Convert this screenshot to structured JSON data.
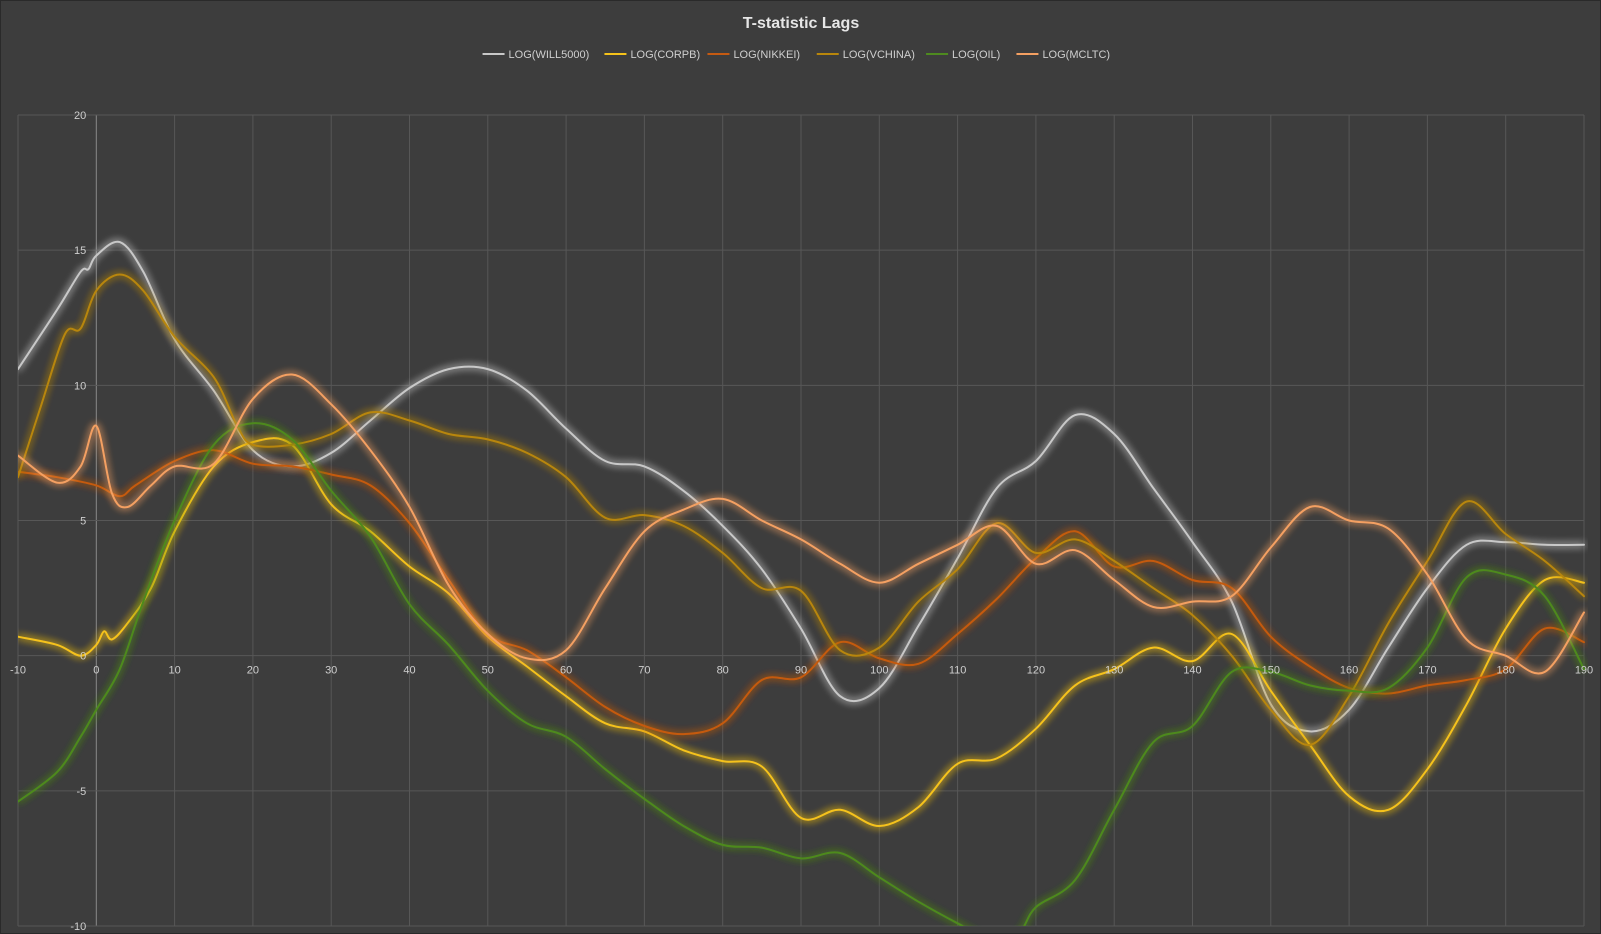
{
  "chart_data": {
    "type": "line",
    "title": "T-statistic Lags",
    "legend_position": "top",
    "grid": true,
    "xlim": [
      -10,
      190
    ],
    "ylim": [
      -10,
      20
    ],
    "x_ticks": [
      -10,
      0,
      10,
      20,
      30,
      40,
      50,
      60,
      70,
      80,
      90,
      100,
      110,
      120,
      130,
      140,
      150,
      160,
      170,
      180,
      190
    ],
    "y_ticks": [
      -10,
      -5,
      0,
      5,
      10,
      15,
      20
    ],
    "series": [
      {
        "name": "LOG(WILL5000)",
        "color": "#c8c8c8",
        "points": [
          [
            -10,
            10.6
          ],
          [
            -5,
            12.8
          ],
          [
            -2,
            14.2
          ],
          [
            -1,
            14.3
          ],
          [
            0,
            14.8
          ],
          [
            3,
            15.3
          ],
          [
            6,
            14.2
          ],
          [
            10,
            11.7
          ],
          [
            15,
            9.8
          ],
          [
            20,
            7.6
          ],
          [
            25,
            7
          ],
          [
            30,
            7.5
          ],
          [
            35,
            8.7
          ],
          [
            40,
            9.9
          ],
          [
            45,
            10.6
          ],
          [
            50,
            10.6
          ],
          [
            55,
            9.8
          ],
          [
            60,
            8.4
          ],
          [
            65,
            7.2
          ],
          [
            70,
            7
          ],
          [
            75,
            6.1
          ],
          [
            80,
            4.8
          ],
          [
            85,
            3.2
          ],
          [
            90,
            1
          ],
          [
            95,
            -1.5
          ],
          [
            100,
            -1.2
          ],
          [
            105,
            1.1
          ],
          [
            110,
            3.6
          ],
          [
            115,
            6.2
          ],
          [
            120,
            7.2
          ],
          [
            125,
            8.9
          ],
          [
            130,
            8.2
          ],
          [
            135,
            6.2
          ],
          [
            140,
            4.2
          ],
          [
            145,
            2
          ],
          [
            150,
            -1.8
          ],
          [
            155,
            -2.8
          ],
          [
            160,
            -2
          ],
          [
            165,
            0.3
          ],
          [
            170,
            2.5
          ],
          [
            175,
            4.1
          ],
          [
            180,
            4.2
          ],
          [
            185,
            4.1
          ],
          [
            190,
            4.1
          ]
        ]
      },
      {
        "name": "LOG(CORPB)",
        "color": "#f5c21a",
        "points": [
          [
            -10,
            0.7
          ],
          [
            -5,
            0.4
          ],
          [
            -2,
            0
          ],
          [
            0,
            0.4
          ],
          [
            1,
            0.9
          ],
          [
            2,
            0.6
          ],
          [
            4,
            1.2
          ],
          [
            7,
            2.5
          ],
          [
            10,
            4.6
          ],
          [
            15,
            7
          ],
          [
            20,
            7.9
          ],
          [
            25,
            7.8
          ],
          [
            30,
            5.6
          ],
          [
            35,
            4.6
          ],
          [
            40,
            3.3
          ],
          [
            45,
            2.3
          ],
          [
            50,
            0.7
          ],
          [
            55,
            -0.4
          ],
          [
            60,
            -1.5
          ],
          [
            65,
            -2.5
          ],
          [
            70,
            -2.8
          ],
          [
            75,
            -3.5
          ],
          [
            80,
            -3.9
          ],
          [
            85,
            -4.1
          ],
          [
            90,
            -6
          ],
          [
            95,
            -5.7
          ],
          [
            100,
            -6.3
          ],
          [
            105,
            -5.6
          ],
          [
            110,
            -4
          ],
          [
            115,
            -3.8
          ],
          [
            120,
            -2.7
          ],
          [
            125,
            -1.1
          ],
          [
            130,
            -0.5
          ],
          [
            135,
            0.3
          ],
          [
            140,
            -0.2
          ],
          [
            145,
            0.8
          ],
          [
            150,
            -1.3
          ],
          [
            155,
            -3.3
          ],
          [
            160,
            -5.2
          ],
          [
            165,
            -5.7
          ],
          [
            170,
            -4.2
          ],
          [
            175,
            -1.8
          ],
          [
            180,
            1
          ],
          [
            185,
            2.8
          ],
          [
            190,
            2.7
          ]
        ]
      },
      {
        "name": "LOG(NIKKEI)",
        "color": "#c55a11",
        "points": [
          [
            -10,
            6.8
          ],
          [
            -5,
            6.6
          ],
          [
            0,
            6.3
          ],
          [
            3,
            5.9
          ],
          [
            5,
            6.3
          ],
          [
            10,
            7.2
          ],
          [
            15,
            7.6
          ],
          [
            20,
            7.1
          ],
          [
            25,
            7
          ],
          [
            30,
            6.7
          ],
          [
            35,
            6.3
          ],
          [
            40,
            4.9
          ],
          [
            45,
            2.8
          ],
          [
            50,
            0.8
          ],
          [
            55,
            0.2
          ],
          [
            60,
            -0.8
          ],
          [
            65,
            -1.9
          ],
          [
            70,
            -2.6
          ],
          [
            75,
            -2.9
          ],
          [
            80,
            -2.5
          ],
          [
            85,
            -0.9
          ],
          [
            90,
            -0.8
          ],
          [
            95,
            0.5
          ],
          [
            100,
            -0.1
          ],
          [
            105,
            -0.3
          ],
          [
            110,
            0.8
          ],
          [
            115,
            2.1
          ],
          [
            120,
            3.6
          ],
          [
            125,
            4.6
          ],
          [
            130,
            3.3
          ],
          [
            135,
            3.5
          ],
          [
            140,
            2.8
          ],
          [
            145,
            2.5
          ],
          [
            150,
            0.7
          ],
          [
            155,
            -0.4
          ],
          [
            160,
            -1.2
          ],
          [
            165,
            -1.4
          ],
          [
            170,
            -1.1
          ],
          [
            175,
            -0.9
          ],
          [
            180,
            -0.5
          ],
          [
            185,
            1
          ],
          [
            190,
            0.5
          ]
        ]
      },
      {
        "name": "LOG(VCHINA)",
        "color": "#b8860b",
        "points": [
          [
            -10,
            6.6
          ],
          [
            -7,
            9.3
          ],
          [
            -4,
            11.9
          ],
          [
            -2,
            12.1
          ],
          [
            0,
            13.5
          ],
          [
            3,
            14.1
          ],
          [
            6,
            13.5
          ],
          [
            10,
            11.8
          ],
          [
            15,
            10.3
          ],
          [
            18,
            8.5
          ],
          [
            20,
            7.8
          ],
          [
            25,
            7.8
          ],
          [
            30,
            8.2
          ],
          [
            35,
            9
          ],
          [
            40,
            8.7
          ],
          [
            45,
            8.2
          ],
          [
            50,
            8
          ],
          [
            55,
            7.5
          ],
          [
            60,
            6.6
          ],
          [
            65,
            5.1
          ],
          [
            70,
            5.2
          ],
          [
            75,
            4.8
          ],
          [
            80,
            3.8
          ],
          [
            85,
            2.5
          ],
          [
            90,
            2.4
          ],
          [
            95,
            0.2
          ],
          [
            100,
            0.3
          ],
          [
            105,
            2
          ],
          [
            110,
            3.2
          ],
          [
            115,
            4.9
          ],
          [
            120,
            3.8
          ],
          [
            125,
            4.3
          ],
          [
            130,
            3.5
          ],
          [
            135,
            2.5
          ],
          [
            140,
            1.5
          ],
          [
            145,
            0
          ],
          [
            150,
            -2
          ],
          [
            155,
            -3.3
          ],
          [
            160,
            -1.5
          ],
          [
            165,
            1.2
          ],
          [
            170,
            3.5
          ],
          [
            175,
            5.7
          ],
          [
            180,
            4.5
          ],
          [
            185,
            3.5
          ],
          [
            190,
            2.2
          ]
        ]
      },
      {
        "name": "LOG(OIL)",
        "color": "#4e8a1f",
        "points": [
          [
            -10,
            -5.4
          ],
          [
            -5,
            -4.3
          ],
          [
            -2,
            -3
          ],
          [
            0,
            -2
          ],
          [
            3,
            -0.5
          ],
          [
            6,
            2
          ],
          [
            10,
            5
          ],
          [
            15,
            7.8
          ],
          [
            20,
            8.6
          ],
          [
            25,
            8
          ],
          [
            30,
            6.1
          ],
          [
            35,
            4.4
          ],
          [
            40,
            1.9
          ],
          [
            45,
            0.4
          ],
          [
            50,
            -1.3
          ],
          [
            55,
            -2.5
          ],
          [
            60,
            -3
          ],
          [
            65,
            -4.2
          ],
          [
            70,
            -5.3
          ],
          [
            75,
            -6.3
          ],
          [
            80,
            -7
          ],
          [
            85,
            -7.1
          ],
          [
            90,
            -7.5
          ],
          [
            95,
            -7.3
          ],
          [
            100,
            -8.2
          ],
          [
            105,
            -9.1
          ],
          [
            110,
            -9.9
          ],
          [
            115,
            -10.6
          ],
          [
            118,
            -10.2
          ],
          [
            120,
            -9.3
          ],
          [
            125,
            -8.3
          ],
          [
            130,
            -5.7
          ],
          [
            135,
            -3.2
          ],
          [
            140,
            -2.6
          ],
          [
            145,
            -0.6
          ],
          [
            150,
            -0.6
          ],
          [
            155,
            -1.1
          ],
          [
            160,
            -1.3
          ],
          [
            165,
            -1.2
          ],
          [
            170,
            0.3
          ],
          [
            175,
            2.9
          ],
          [
            180,
            3
          ],
          [
            185,
            2.2
          ],
          [
            190,
            -0.5
          ]
        ]
      },
      {
        "name": "LOG(MCLTC)",
        "color": "#f4a062",
        "points": [
          [
            -10,
            7.4
          ],
          [
            -5,
            6.4
          ],
          [
            -2,
            7
          ],
          [
            0,
            8.5
          ],
          [
            2,
            6
          ],
          [
            4,
            5.5
          ],
          [
            7,
            6.3
          ],
          [
            10,
            7
          ],
          [
            15,
            7.1
          ],
          [
            20,
            9.5
          ],
          [
            25,
            10.4
          ],
          [
            30,
            9.3
          ],
          [
            35,
            7.6
          ],
          [
            40,
            5.5
          ],
          [
            45,
            2.6
          ],
          [
            50,
            0.8
          ],
          [
            55,
            -0.1
          ],
          [
            60,
            0.2
          ],
          [
            65,
            2.5
          ],
          [
            70,
            4.6
          ],
          [
            75,
            5.4
          ],
          [
            80,
            5.8
          ],
          [
            85,
            5
          ],
          [
            90,
            4.3
          ],
          [
            95,
            3.4
          ],
          [
            100,
            2.7
          ],
          [
            105,
            3.4
          ],
          [
            110,
            4.1
          ],
          [
            115,
            4.8
          ],
          [
            120,
            3.4
          ],
          [
            125,
            3.9
          ],
          [
            130,
            2.8
          ],
          [
            135,
            1.8
          ],
          [
            140,
            2
          ],
          [
            145,
            2.2
          ],
          [
            150,
            4
          ],
          [
            155,
            5.5
          ],
          [
            160,
            5
          ],
          [
            165,
            4.7
          ],
          [
            170,
            3
          ],
          [
            175,
            0.6
          ],
          [
            180,
            0
          ],
          [
            185,
            -0.6
          ],
          [
            190,
            1.6
          ]
        ]
      }
    ]
  }
}
